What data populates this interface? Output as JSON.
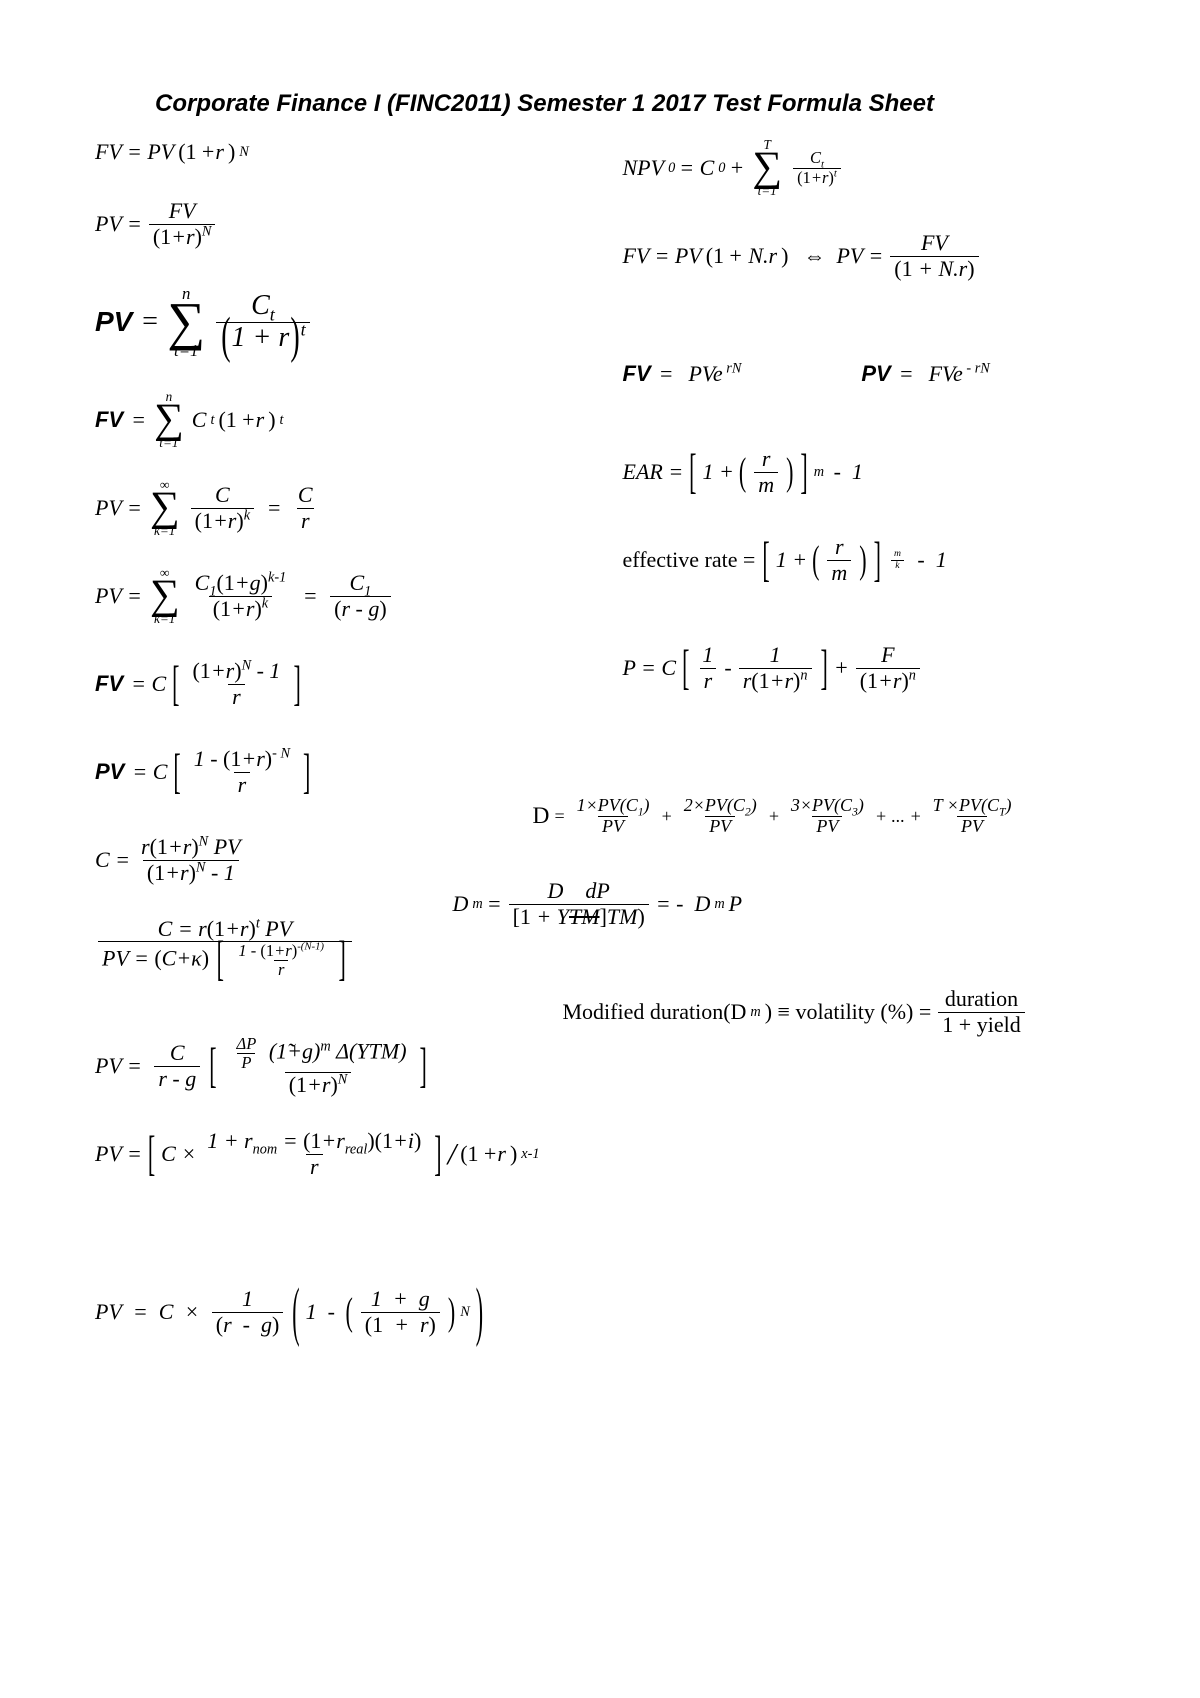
{
  "doc": {
    "title": "Corporate Finance I (FINC2011) Semester 1 2017 Test Formula Sheet",
    "background_color": "#ffffff",
    "text_color": "#000000",
    "title_font_family": "Arial",
    "title_font_size_pt": 18,
    "body_font_family": "Times New Roman",
    "body_font_size_pt": 16
  },
  "formulas": {
    "left": [
      {
        "id": "fv_compound",
        "text": "FV = PV(1+r)^N"
      },
      {
        "id": "pv_discount",
        "text": "PV = FV / (1+r)^N"
      },
      {
        "id": "pv_sum_ct",
        "text": "PV = Σ_{t=1}^{n} C_t / (1+r)^t"
      },
      {
        "id": "fv_sum_ct",
        "text": "FV = Σ_{t=1}^{n} C_t (1+r)^t"
      },
      {
        "id": "pv_perpetuity",
        "text": "PV = Σ_{k=1}^{∞} C / (1+r)^k = C / r"
      },
      {
        "id": "pv_growing_perp",
        "text": "PV = Σ_{k=1}^{∞} C_1(1+g)^{k-1} / (1+r)^k = C_1 / (r - g)"
      },
      {
        "id": "fv_annuity",
        "text": "FV = C [ ((1+r)^N - 1) / r ]"
      },
      {
        "id": "pv_annuity",
        "text": "PV = C [ (1 - (1+r)^{-N}) / r ]"
      },
      {
        "id": "c_from_pv",
        "text": "C = r(1+r)^N PV / ((1+r)^N - 1)"
      },
      {
        "id": "c_pv_overlap",
        "text": "C = r(1+r)^t PV / ... ; PV = (C+κ)[ (1 - (1+r)^{-(N-1)}) / r ]"
      },
      {
        "id": "pv_growing_annuity_overlap",
        "text": "PV = C/(r-g) [ ΔP/P (1+g)^m Δ(YTM) / (1+r)^N ]"
      },
      {
        "id": "pv_nominal_real_overlap",
        "text": "PV = [ C × (1+r_nom=(1+r_real)(1+i)) / r ] / (1+r)^{x-1}"
      },
      {
        "id": "pv_growing_annuity_clean",
        "text": "PV = C × 1/(r - g) ( 1 - ((1+g)/(1+r))^N )"
      }
    ],
    "right": [
      {
        "id": "npv",
        "text": "NPV_0 = C_0 + Σ_{t=1}^{T} C_t / (1+r)^t"
      },
      {
        "id": "simple_interest",
        "text": "FV = PV(1 + N.r)  ⇔  PV = FV / (1 + N.r)"
      },
      {
        "id": "continuous",
        "fv": "FV = PVe^{rN}",
        "pv": "PV = FVe^{-rN}"
      },
      {
        "id": "ear",
        "text": "EAR = [1 + (r/m)]^m - 1"
      },
      {
        "id": "effective_rate",
        "text": "effective rate = [1 + (r/m)]^{m/k} - 1"
      },
      {
        "id": "bond_price",
        "text": "P = C[ 1/r - 1/(r(1+r)^n) ] + F/(1+r)^n"
      },
      {
        "id": "duration_D",
        "text": "D = 1×PV(C_1)/PV + 2×PV(C_2)/PV + 3×PV(C_3)/PV + ... + T×PV(C_T)/PV"
      },
      {
        "id": "modified_duration_Dm",
        "text": "D_m = D / [1 + YTM] ; dP/d(YTM) = -D_m P"
      },
      {
        "id": "modified_duration_vol",
        "text": "Modified duration(D_m) ≡ volatility (%) = duration / (1 + yield)"
      }
    ]
  }
}
